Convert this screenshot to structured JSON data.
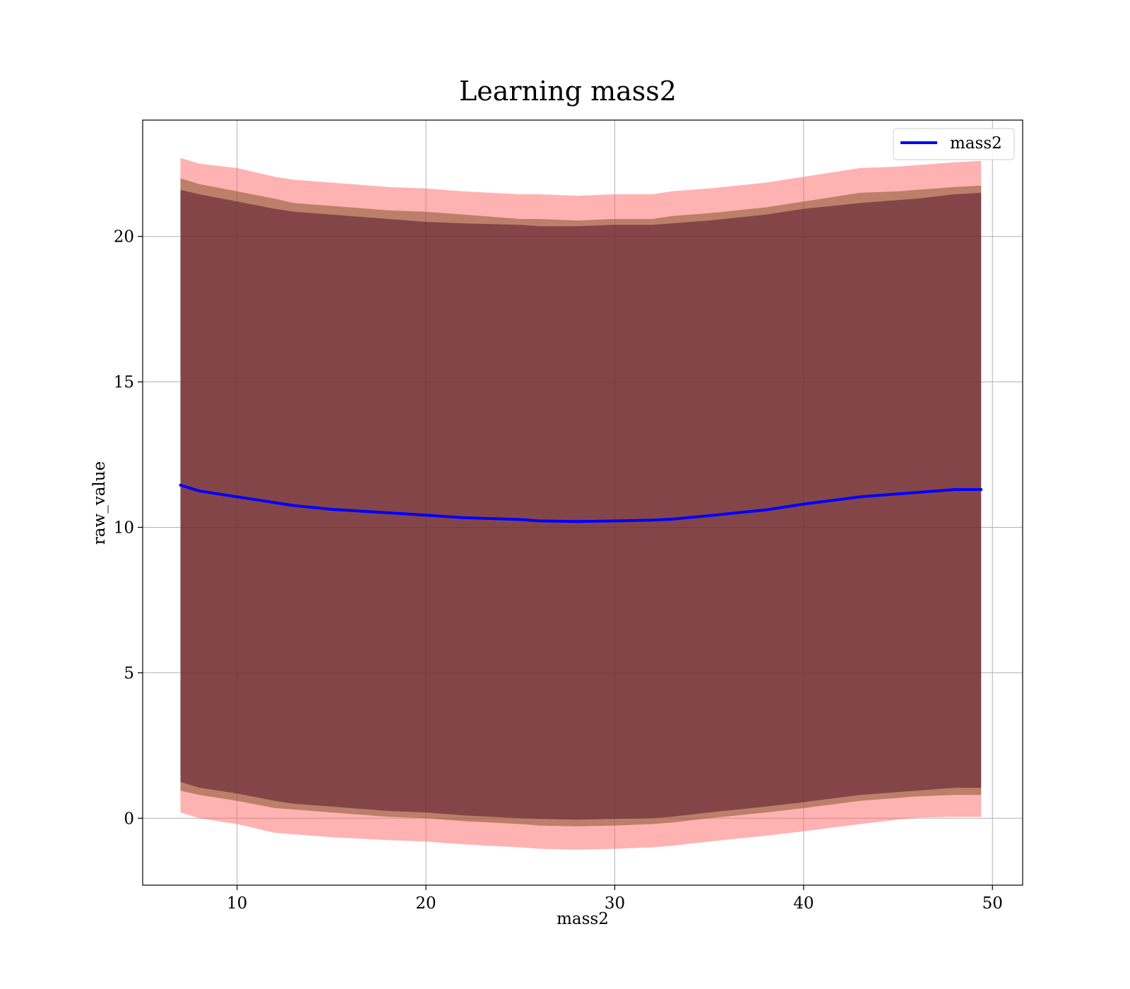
{
  "chart_data": {
    "type": "line",
    "title": "Learning mass2",
    "xlabel": "mass2",
    "ylabel": "raw_value",
    "xlim": [
      5,
      51.6
    ],
    "ylim": [
      -2.3,
      24
    ],
    "xticks": [
      10,
      20,
      30,
      40,
      50
    ],
    "yticks": [
      0,
      5,
      10,
      15,
      20
    ],
    "grid": true,
    "legend": {
      "placement": "top-right",
      "entries": [
        "mass2"
      ]
    },
    "x": [
      7,
      8,
      10,
      12,
      13,
      15,
      18,
      20,
      22,
      25,
      26,
      28,
      30,
      32,
      33,
      35,
      38,
      40,
      43,
      45,
      46,
      48,
      49.4
    ],
    "series": [
      {
        "name": "mass2",
        "color": "#0000ff",
        "values": [
          11.45,
          11.25,
          11.05,
          10.85,
          10.75,
          10.62,
          10.5,
          10.42,
          10.33,
          10.27,
          10.22,
          10.2,
          10.22,
          10.25,
          10.28,
          10.4,
          10.6,
          10.8,
          11.05,
          11.15,
          11.2,
          11.3,
          11.3
        ]
      }
    ],
    "bands": [
      {
        "color": "#ff6666",
        "opacity": 0.5,
        "upper": [
          22.7,
          22.5,
          22.35,
          22.05,
          21.95,
          21.85,
          21.7,
          21.65,
          21.55,
          21.45,
          21.45,
          21.4,
          21.45,
          21.45,
          21.55,
          21.65,
          21.85,
          22.05,
          22.35,
          22.4,
          22.45,
          22.55,
          22.6
        ],
        "lower": [
          0.2,
          0.0,
          -0.2,
          -0.5,
          -0.55,
          -0.65,
          -0.75,
          -0.8,
          -0.9,
          -1.0,
          -1.05,
          -1.08,
          -1.05,
          -1.0,
          -0.95,
          -0.8,
          -0.6,
          -0.45,
          -0.2,
          -0.05,
          0.02,
          0.05,
          0.05
        ]
      },
      {
        "color": "#7a4b1f",
        "opacity": 0.5,
        "upper": [
          22.0,
          21.8,
          21.55,
          21.3,
          21.15,
          21.05,
          20.9,
          20.85,
          20.75,
          20.6,
          20.6,
          20.55,
          20.6,
          20.6,
          20.7,
          20.8,
          21.0,
          21.2,
          21.5,
          21.55,
          21.6,
          21.7,
          21.75
        ],
        "lower": [
          0.95,
          0.8,
          0.6,
          0.35,
          0.3,
          0.2,
          0.05,
          0.0,
          -0.1,
          -0.2,
          -0.25,
          -0.28,
          -0.25,
          -0.2,
          -0.15,
          0.0,
          0.2,
          0.35,
          0.6,
          0.7,
          0.75,
          0.8,
          0.8
        ]
      },
      {
        "color": "#4b0b2a",
        "opacity": 0.5,
        "upper": [
          21.6,
          21.45,
          21.2,
          20.95,
          20.85,
          20.75,
          20.6,
          20.5,
          20.45,
          20.4,
          20.35,
          20.35,
          20.4,
          20.4,
          20.45,
          20.55,
          20.75,
          20.95,
          21.15,
          21.25,
          21.3,
          21.45,
          21.5
        ],
        "lower": [
          1.25,
          1.05,
          0.85,
          0.6,
          0.5,
          0.4,
          0.25,
          0.2,
          0.1,
          0.0,
          -0.02,
          -0.05,
          -0.02,
          0.0,
          0.05,
          0.2,
          0.4,
          0.55,
          0.8,
          0.9,
          0.95,
          1.05,
          1.05
        ]
      }
    ]
  }
}
